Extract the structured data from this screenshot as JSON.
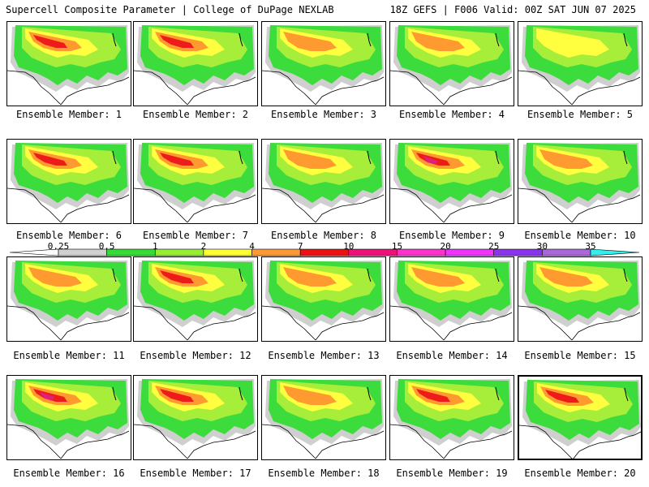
{
  "header": {
    "title": "Supercell Composite Parameter | College of DuPage NEXLAB",
    "run_info": "18Z GEFS | F006 Valid: 00Z SAT JUN 07 2025"
  },
  "colorbar": {
    "labels": [
      "0.25",
      "0.5",
      "1",
      "2",
      "4",
      "7",
      "10",
      "15",
      "20",
      "25",
      "30",
      "35"
    ],
    "colors": [
      "#d0d0d0",
      "#33dd33",
      "#99ee33",
      "#ffff33",
      "#ff9933",
      "#ee1111",
      "#ee1177",
      "#ff33cc",
      "#ee33ff",
      "#8833ee",
      "#aa66dd",
      "#33eeee"
    ]
  },
  "shading_colors": {
    "gray": "#cfcfcf",
    "green": "#3ddc3d",
    "lightgreen": "#a6ee3a",
    "yellow": "#ffff40",
    "orange": "#ff9a30",
    "red": "#ee1b1b",
    "magenta": "#e0207f"
  },
  "members": [
    {
      "caption": "Ensemble Member: 1",
      "intensity": 3
    },
    {
      "caption": "Ensemble Member: 2",
      "intensity": 3
    },
    {
      "caption": "Ensemble Member: 3",
      "intensity": 2
    },
    {
      "caption": "Ensemble Member: 4",
      "intensity": 2
    },
    {
      "caption": "Ensemble Member: 5",
      "intensity": 1
    },
    {
      "caption": "Ensemble Member: 6",
      "intensity": 3
    },
    {
      "caption": "Ensemble Member: 7",
      "intensity": 3
    },
    {
      "caption": "Ensemble Member: 8",
      "intensity": 2
    },
    {
      "caption": "Ensemble Member: 9",
      "intensity": 4
    },
    {
      "caption": "Ensemble Member: 10",
      "intensity": 2
    },
    {
      "caption": "Ensemble Member: 11",
      "intensity": 2
    },
    {
      "caption": "Ensemble Member: 12",
      "intensity": 3
    },
    {
      "caption": "Ensemble Member: 13",
      "intensity": 2
    },
    {
      "caption": "Ensemble Member: 14",
      "intensity": 2
    },
    {
      "caption": "Ensemble Member: 15",
      "intensity": 2
    },
    {
      "caption": "Ensemble Member: 16",
      "intensity": 4
    },
    {
      "caption": "Ensemble Member: 17",
      "intensity": 3
    },
    {
      "caption": "Ensemble Member: 18",
      "intensity": 2
    },
    {
      "caption": "Ensemble Member: 19",
      "intensity": 3
    },
    {
      "caption": "Ensemble Member: 20",
      "intensity": 3
    }
  ]
}
